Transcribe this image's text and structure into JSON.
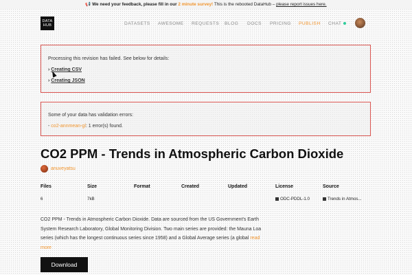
{
  "banner": {
    "icon": "megaphone-icon",
    "part1": "We need your feedback, please fill in our",
    "survey_link": "2 minute survey!",
    "part2": "This is the rebooted DataHub –",
    "issues_link": "please report issues here."
  },
  "logo": {
    "line1": "DATA",
    "line2": "HUB"
  },
  "nav": {
    "items": [
      "DATASETS",
      "AWESOME",
      "REQUESTS",
      "BLOG",
      "DOCS",
      "PRICING",
      "PUBLISH",
      "CHAT"
    ]
  },
  "alerts": {
    "failed": {
      "message": "Processing this revision has failed. See below for details:",
      "items": [
        "Creating CSV",
        "Creating JSON"
      ],
      "arrow": "›"
    },
    "validation": {
      "message": "Some of your data has validation errors:",
      "resource": "co2-annmean-gl",
      "suffix": ": 1 error(s) found.",
      "dash": "-"
    }
  },
  "dataset": {
    "title": "CO2 PPM - Trends in Atmospheric Carbon Dioxide",
    "author": "anuveyatsu"
  },
  "table": {
    "headers": [
      "Files",
      "Size",
      "Format",
      "Created",
      "Updated",
      "License",
      "Source"
    ],
    "files": "6",
    "size": "7kB",
    "license": "ODC-PDDL-1.0",
    "source": "Trends in Atmos..."
  },
  "description": {
    "text": "CO2 PPM - Trends in Atmospheric Carbon Dioxide. Data are sourced from the US Government's Earth System Research Laboratory, Global Monitoring Division. Two main series are provided: the Mauna Loa series (which has the longest continuous series since 1958) and a Global Average series (a global",
    "more": "read more"
  },
  "download": {
    "label": "Download"
  },
  "colors": {
    "accent": "#f0932b",
    "alert_border": "#d9534f",
    "chat_dot": "#2ecc9a"
  }
}
